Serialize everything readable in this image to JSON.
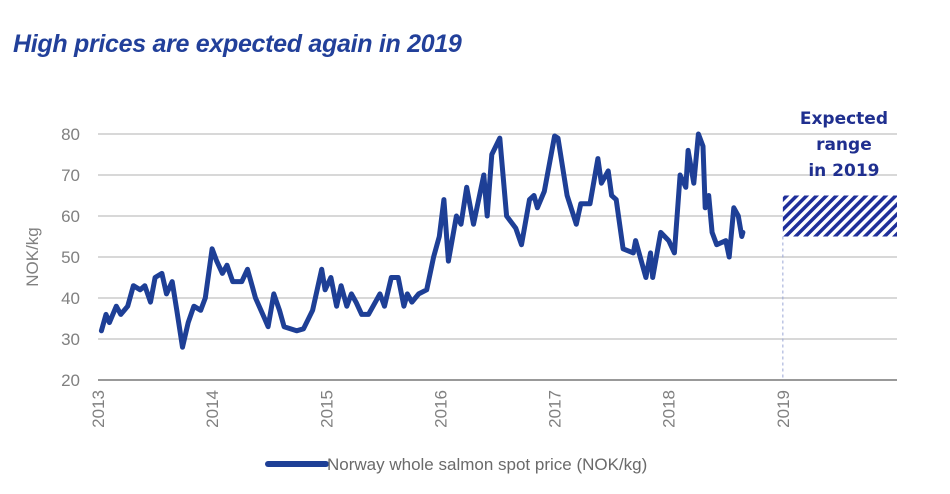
{
  "chart_data": {
    "type": "line",
    "title": "High prices are expected again in 2019",
    "xlabel": "",
    "ylabel": "NOK/kg",
    "xlim": [
      2013,
      2020
    ],
    "ylim": [
      20,
      80
    ],
    "x_ticks": [
      "2013",
      "2014",
      "2015",
      "2016",
      "2017",
      "2018",
      "2019"
    ],
    "y_ticks": [
      "20",
      "30",
      "40",
      "50",
      "60",
      "70",
      "80"
    ],
    "grid": "horizontal",
    "legend": "bottom",
    "colors": {
      "line": "#1e3f96",
      "title": "#22409a",
      "range": "#1f2f9a",
      "grid": "#cccccc"
    },
    "series": [
      {
        "name": "Norway whole salmon spot price (NOK/kg)",
        "x": [
          2013.03,
          2013.07,
          2013.1,
          2013.16,
          2013.2,
          2013.26,
          2013.31,
          2013.37,
          2013.41,
          2013.46,
          2013.5,
          2013.56,
          2013.6,
          2013.65,
          2013.69,
          2013.74,
          2013.79,
          2013.84,
          2013.9,
          2013.94,
          2014.0,
          2014.04,
          2014.09,
          2014.13,
          2014.18,
          2014.26,
          2014.31,
          2014.38,
          2014.46,
          2014.49,
          2014.54,
          2014.59,
          2014.63,
          2014.74,
          2014.8,
          2014.88,
          2014.96,
          2014.99,
          2015.04,
          2015.09,
          2015.13,
          2015.18,
          2015.22,
          2015.26,
          2015.31,
          2015.37,
          2015.41,
          2015.47,
          2015.51,
          2015.57,
          2015.63,
          2015.68,
          2015.71,
          2015.75,
          2015.81,
          2015.88,
          2015.94,
          2015.99,
          2016.03,
          2016.07,
          2016.14,
          2016.18,
          2016.23,
          2016.29,
          2016.38,
          2016.41,
          2016.45,
          2016.52,
          2016.58,
          2016.66,
          2016.71,
          2016.78,
          2016.82,
          2016.85,
          2016.91,
          2017.0,
          2017.03,
          2017.11,
          2017.19,
          2017.23,
          2017.31,
          2017.38,
          2017.41,
          2017.47,
          2017.5,
          2017.54,
          2017.6,
          2017.69,
          2017.71,
          2017.8,
          2017.84,
          2017.86,
          2017.93,
          2018.0,
          2018.05,
          2018.1,
          2018.15,
          2018.17,
          2018.22,
          2018.26,
          2018.3,
          2018.32,
          2018.35,
          2018.38,
          2018.42,
          2018.5,
          2018.53,
          2018.57,
          2018.61,
          2018.64,
          2018.65
        ],
        "values": [
          32,
          36,
          34,
          38,
          36,
          38,
          43,
          42,
          43,
          39,
          45,
          46,
          41,
          44,
          37,
          28,
          34,
          38,
          37,
          40,
          52,
          49,
          46,
          48,
          44,
          44,
          47,
          40,
          35,
          33,
          41,
          37,
          33,
          32,
          32.5,
          37,
          47,
          42,
          45,
          38,
          43,
          38,
          41,
          39,
          36,
          36,
          38,
          41,
          38,
          45,
          45,
          38,
          41,
          39,
          41,
          42,
          50,
          55,
          64,
          49,
          60,
          58,
          67,
          58,
          70,
          60,
          75,
          79,
          60,
          57,
          53,
          64,
          65,
          62,
          66,
          79.5,
          79,
          65,
          58,
          63,
          63,
          74,
          68,
          71,
          65,
          64,
          52,
          51,
          54,
          45,
          51,
          45,
          56,
          54,
          51,
          70,
          67,
          76,
          68,
          80,
          77,
          62,
          65,
          56,
          53,
          54,
          50,
          62,
          60,
          55,
          56
        ]
      }
    ],
    "expected_range": {
      "label_lines": [
        "Expected",
        "range",
        "in 2019"
      ],
      "x": [
        2019,
        2020
      ],
      "low": 55,
      "high": 65
    }
  }
}
